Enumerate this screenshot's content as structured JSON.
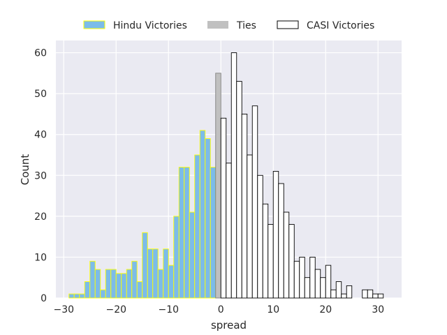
{
  "chart_data": {
    "type": "bar",
    "xlabel": "spread",
    "ylabel": "Count",
    "xlim": [
      -31.5,
      34.5
    ],
    "ylim": [
      0,
      63
    ],
    "xticks": [
      -30,
      -20,
      -10,
      0,
      10,
      20,
      30
    ],
    "yticks": [
      0,
      10,
      20,
      30,
      40,
      50,
      60
    ],
    "grid": true,
    "legend_position": "top-center",
    "series": [
      {
        "name": "Hindu Victories",
        "color": "#7cbce9",
        "edge_color": "#ffff00",
        "x": [
          -28,
          -27,
          -26,
          -25,
          -24,
          -23,
          -22,
          -21,
          -20,
          -19,
          -18,
          -17,
          -16,
          -15,
          -14,
          -13,
          -12,
          -11,
          -10,
          -9,
          -8,
          -7,
          -6,
          -5,
          -4,
          -3,
          -2,
          -1
        ],
        "values": [
          1,
          1,
          1,
          4,
          9,
          7,
          2,
          7,
          7,
          6,
          6,
          7,
          9,
          4,
          16,
          12,
          12,
          7,
          12,
          8,
          20,
          32,
          32,
          21,
          35,
          41,
          39,
          32
        ]
      },
      {
        "name": "Ties",
        "color": "#c0c0c0",
        "edge_color": "#808080",
        "x": [
          0
        ],
        "values": [
          55
        ]
      },
      {
        "name": "CASI Victories",
        "color": "#ffffff",
        "edge_color": "#000000",
        "x": [
          1,
          2,
          3,
          4,
          5,
          6,
          7,
          8,
          9,
          10,
          11,
          12,
          13,
          14,
          15,
          16,
          17,
          18,
          19,
          20,
          21,
          22,
          23,
          24,
          25,
          26,
          27,
          28,
          29,
          30,
          31
        ],
        "values": [
          44,
          33,
          60,
          53,
          45,
          35,
          47,
          30,
          23,
          18,
          31,
          28,
          21,
          18,
          9,
          10,
          5,
          10,
          7,
          5,
          8,
          2,
          4,
          1,
          3,
          0,
          0,
          2,
          2,
          1,
          1
        ]
      }
    ]
  }
}
